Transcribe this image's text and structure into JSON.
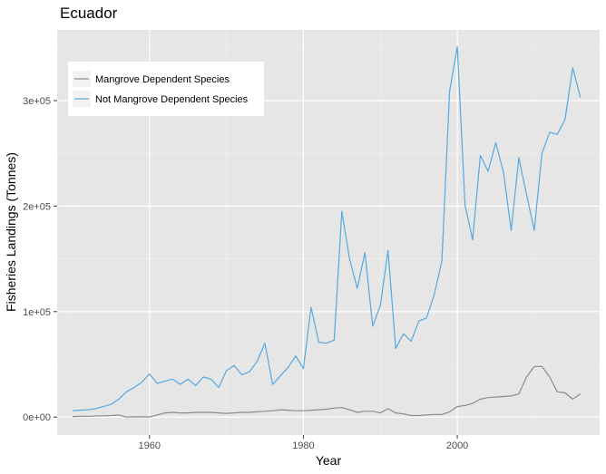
{
  "chart_data": {
    "type": "line",
    "title": "Ecuador",
    "xlabel": "Year",
    "ylabel": "Fisheries Landings (Tonnes)",
    "xlim": [
      1948,
      2018.5
    ],
    "ylim": [
      -17000,
      367000
    ],
    "x_ticks": [
      1960,
      1980,
      2000
    ],
    "x_tick_labels": [
      "1960",
      "1980",
      "2000"
    ],
    "y_ticks": [
      0,
      100000,
      200000,
      300000
    ],
    "y_tick_labels": [
      "0e+00",
      "1e+05",
      "2e+05",
      "3e+05"
    ],
    "grid": true,
    "legend_position": "top-left",
    "colors": {
      "panel": "#e6e6e6",
      "grid": "#ffffff",
      "mangrove": "#8c8c8c",
      "not_mangrove": "#56a8e0"
    },
    "x": [
      1950,
      1951,
      1952,
      1953,
      1954,
      1955,
      1956,
      1957,
      1958,
      1959,
      1960,
      1961,
      1962,
      1963,
      1964,
      1965,
      1966,
      1967,
      1968,
      1969,
      1970,
      1971,
      1972,
      1973,
      1974,
      1975,
      1976,
      1977,
      1978,
      1979,
      1980,
      1981,
      1982,
      1983,
      1984,
      1985,
      1986,
      1987,
      1988,
      1989,
      1990,
      1991,
      1992,
      1993,
      1994,
      1995,
      1996,
      1997,
      1998,
      1999,
      2000,
      2001,
      2002,
      2003,
      2004,
      2005,
      2006,
      2007,
      2008,
      2009,
      2010,
      2011,
      2012,
      2013,
      2014,
      2015,
      2016
    ],
    "series": [
      {
        "name": "Mangrove Dependent Species",
        "color": "#8c8c8c",
        "values": [
          500,
          700,
          800,
          1000,
          1200,
          1500,
          2000,
          0,
          300,
          300,
          200,
          2000,
          4000,
          4500,
          4000,
          4000,
          4500,
          4500,
          4500,
          4000,
          3500,
          4000,
          4500,
          4500,
          5000,
          5500,
          6000,
          7000,
          6500,
          6000,
          6000,
          6500,
          7000,
          7500,
          8500,
          9000,
          7000,
          4500,
          5500,
          5500,
          4000,
          8000,
          4000,
          3000,
          1500,
          1500,
          2000,
          2500,
          2500,
          5000,
          10000,
          11000,
          13000,
          17000,
          18500,
          19000,
          19500,
          20000,
          22000,
          38000,
          48000,
          48000,
          38000,
          24000,
          23000,
          17000,
          22000
        ]
      },
      {
        "name": "Not Mangrove Dependent Species",
        "color": "#56a8e0",
        "values": [
          6000,
          6500,
          7000,
          8000,
          10000,
          12000,
          17000,
          24000,
          28000,
          33000,
          41000,
          32000,
          34000,
          36000,
          31000,
          36000,
          30000,
          38000,
          36000,
          28000,
          44000,
          49000,
          40000,
          43000,
          53000,
          70000,
          31000,
          39000,
          47000,
          58000,
          46000,
          104000,
          71000,
          70000,
          73000,
          195000,
          150000,
          122000,
          156000,
          86000,
          106000,
          158000,
          65000,
          79000,
          72000,
          91000,
          94000,
          116000,
          148000,
          309000,
          351000,
          201000,
          168000,
          248000,
          233000,
          260000,
          232000,
          177000,
          246000,
          211000,
          177000,
          250000,
          270000,
          268000,
          282000,
          331000,
          303000
        ]
      }
    ]
  }
}
